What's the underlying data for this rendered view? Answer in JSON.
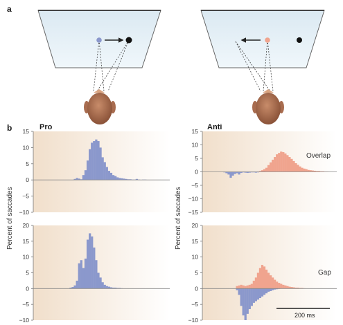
{
  "panel_labels": {
    "a": "a",
    "b": "b"
  },
  "condition_labels": {
    "pro": "Pro",
    "anti": "Anti"
  },
  "row_labels": {
    "overlap": "Overlap",
    "gap": "Gap"
  },
  "y_axis_label": "Percent of saccades",
  "scale_bar_label": "200 ms",
  "colors": {
    "pro_bars": "#8b98cc",
    "anti_bars": "#f0a48e",
    "screen_fill": "#e6f1f8",
    "head": "#a86c4f",
    "background_gradient": "#f2e2d2"
  },
  "icons": [
    "screen-icon",
    "fixation-dot-icon",
    "target-dot-icon",
    "arrow-icon",
    "head-icon"
  ],
  "chart_data": [
    {
      "type": "bar",
      "panel": "Pro / Overlap",
      "ylabel": "Percent of saccades",
      "ylim": [
        -10,
        15
      ],
      "yticks": [
        -10,
        -5,
        0,
        5,
        10,
        15
      ],
      "series": [
        {
          "values": [
            0,
            0,
            0,
            0,
            0,
            0,
            0,
            0,
            0,
            0,
            0,
            0,
            0,
            0,
            0,
            0,
            0,
            0,
            0.3,
            0.6,
            0.4,
            0.2,
            1.5,
            3,
            6,
            9.5,
            11.5,
            12,
            12.5,
            12,
            10,
            7,
            5.5,
            4,
            2.8,
            2.2,
            1.5,
            1.2,
            0.8,
            0.6,
            0.5,
            0.4,
            0.3,
            0.2,
            0.2,
            0.1,
            0.1,
            0.3,
            0.1,
            0,
            0.1,
            0.1,
            0,
            0,
            0,
            0,
            0,
            0,
            0,
            0,
            0,
            0
          ]
        }
      ]
    },
    {
      "type": "bar",
      "panel": "Anti / Overlap",
      "ylim": [
        -15,
        15
      ],
      "yticks": [
        -15,
        -10,
        -5,
        0,
        5,
        10,
        15
      ],
      "series": [
        {
          "values": [
            0,
            0,
            0,
            0,
            0,
            0,
            0,
            0,
            0,
            0,
            0,
            0,
            0,
            0,
            0,
            0,
            0,
            0,
            0,
            0,
            0,
            0,
            0,
            0,
            0,
            0.1,
            0.3,
            0.6,
            1,
            1.5,
            2.5,
            3.5,
            4.5,
            5.5,
            6.5,
            7,
            7.5,
            7.3,
            6.8,
            6.2,
            5.5,
            4.8,
            4,
            3.2,
            2.6,
            2,
            1.5,
            1.2,
            1,
            0.7,
            0.6,
            0.5,
            0.4,
            0.3,
            0.3,
            0.2,
            0.2,
            0.1,
            0.1,
            0,
            0,
            0
          ]
        },
        {
          "values": [
            0,
            0,
            0,
            0,
            0,
            0,
            0,
            0,
            0,
            -0.2,
            -0.5,
            -1,
            -2.2,
            -1.4,
            -0.8,
            -0.5,
            -1,
            -0.4,
            -0.2,
            -0.3,
            -0.4,
            -0.3,
            -0.2,
            -0.2,
            -0.3,
            -0.2,
            -0.1,
            -0.1,
            -0.1,
            0,
            0,
            0,
            0,
            0,
            0,
            0,
            0,
            0,
            0,
            0,
            0,
            0,
            0,
            0,
            0,
            0,
            0,
            0,
            0,
            0,
            0,
            0,
            0,
            0,
            0,
            0,
            0,
            0,
            0,
            0,
            0,
            0
          ]
        }
      ]
    },
    {
      "type": "bar",
      "panel": "Pro / Gap",
      "ylim": [
        -10,
        20
      ],
      "yticks": [
        -10,
        -5,
        0,
        5,
        10,
        15,
        20
      ],
      "series": [
        {
          "values": [
            0,
            0,
            0,
            0,
            0,
            0,
            0,
            0,
            0,
            0,
            0,
            0,
            0,
            0,
            0,
            0,
            0.3,
            0.5,
            1,
            2.5,
            8,
            9,
            6.5,
            9.5,
            15.5,
            17.5,
            16.5,
            13,
            9,
            5,
            3.5,
            2,
            1.2,
            0.8,
            0.6,
            0.4,
            0.3,
            0.3,
            0.2,
            0.2,
            0.1,
            0,
            0,
            0,
            0,
            0,
            0,
            0,
            0,
            0,
            0,
            0,
            0,
            0,
            0,
            0,
            0,
            0,
            0,
            0,
            0,
            0
          ]
        }
      ]
    },
    {
      "type": "bar",
      "panel": "Anti / Gap",
      "ylim": [
        -10,
        20
      ],
      "yticks": [
        -10,
        -5,
        0,
        5,
        10,
        15,
        20
      ],
      "series": [
        {
          "values": [
            0,
            0,
            0,
            0,
            0,
            0,
            0,
            0,
            0,
            0,
            0,
            0,
            0,
            0,
            0,
            0.8,
            1,
            1.2,
            1,
            0.8,
            1,
            1.2,
            1.5,
            2.5,
            3.5,
            5,
            6.5,
            7.5,
            7,
            6,
            5,
            4.2,
            3.5,
            2.8,
            2.2,
            1.8,
            1.5,
            1.2,
            1,
            0.8,
            0.6,
            0.5,
            0.4,
            0.3,
            0.3,
            0.2,
            0.2,
            0.1,
            0,
            0,
            0,
            0,
            0,
            0,
            0,
            0,
            0,
            0,
            0,
            0,
            0,
            0
          ]
        },
        {
          "values": [
            0,
            0,
            0,
            0,
            0,
            0,
            0,
            0,
            0,
            0,
            0,
            0,
            0,
            0,
            0,
            -0.5,
            -2,
            -5.5,
            -8.5,
            -10,
            -8,
            -6.5,
            -5.5,
            -4.5,
            -4,
            -3.5,
            -3,
            -2.5,
            -2,
            -1.5,
            -1,
            -0.8,
            -0.5,
            -0.3,
            -0.2,
            -0.1,
            0,
            0,
            0,
            0,
            0,
            0,
            0,
            0,
            0,
            0,
            0,
            0,
            0,
            0,
            0,
            0,
            0,
            0,
            0,
            0,
            0,
            0,
            0,
            0,
            0,
            0
          ]
        }
      ]
    }
  ]
}
